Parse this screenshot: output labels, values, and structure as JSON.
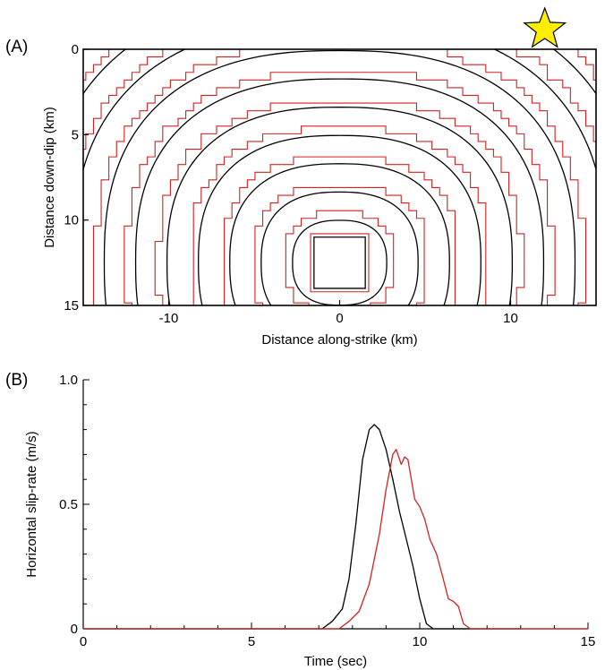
{
  "chart_data": [
    {
      "type": "contour",
      "panel_label": "(A)",
      "xlabel": "Distance along-strike (km)",
      "ylabel": "Distance down-dip (km)",
      "xlim": [
        -15,
        15
      ],
      "ylim": [
        15,
        0
      ],
      "y_inverted": true,
      "x_ticks": [
        -10,
        0,
        10
      ],
      "y_ticks": [
        0,
        5,
        10,
        15
      ],
      "hypocenter": {
        "x": 12,
        "y": 0,
        "marker": "star",
        "color": "#ffee00"
      },
      "series": [
        {
          "color": "#000000",
          "contours": [
            {
              "radius": 1.5,
              "shape": "square"
            },
            {
              "radius": 2.7
            },
            {
              "radius": 4.5
            },
            {
              "radius": 6.3
            },
            {
              "radius": 8.1
            },
            {
              "radius": 9.9
            },
            {
              "radius": 11.7
            },
            {
              "radius": 13.5
            },
            {
              "radius": 15.3
            },
            {
              "radius": 17.1
            },
            {
              "radius": 18.9
            }
          ]
        },
        {
          "color": "#d42020",
          "style": "stepped",
          "contours": [
            {
              "radius": 1.7,
              "shape": "square"
            },
            {
              "radius": 3.2
            },
            {
              "radius": 5.0
            },
            {
              "radius": 6.8
            },
            {
              "radius": 8.6
            },
            {
              "radius": 10.4
            },
            {
              "radius": 12.2
            },
            {
              "radius": 14.0
            },
            {
              "radius": 15.8
            },
            {
              "radius": 17.6
            },
            {
              "radius": 19.4
            }
          ]
        }
      ],
      "contour_center": {
        "x": 0,
        "y": 12.5
      }
    },
    {
      "type": "line",
      "panel_label": "(B)",
      "xlabel": "Time (sec)",
      "ylabel": "Horizontal slip-rate (m/s)",
      "xlim": [
        0,
        15
      ],
      "ylim": [
        0,
        1.0
      ],
      "x_ticks": [
        0,
        5,
        10,
        15
      ],
      "x_tick_labels": [
        "0",
        "5",
        "10",
        "15"
      ],
      "y_ticks": [
        0,
        0.5,
        1.0
      ],
      "y_tick_labels": [
        "0",
        "0.5",
        "1.0"
      ],
      "series": [
        {
          "color": "#000000",
          "x": [
            0,
            7.1,
            7.4,
            7.7,
            7.9,
            8.1,
            8.3,
            8.5,
            8.65,
            8.8,
            9.0,
            9.2,
            9.4,
            9.6,
            9.8,
            10.0,
            10.2,
            10.4,
            13.0
          ],
          "y": [
            0,
            0,
            0.03,
            0.08,
            0.2,
            0.42,
            0.68,
            0.8,
            0.82,
            0.8,
            0.72,
            0.6,
            0.47,
            0.36,
            0.25,
            0.12,
            0.02,
            0,
            0
          ]
        },
        {
          "color": "#d42020",
          "x": [
            0,
            7.6,
            7.9,
            8.2,
            8.5,
            8.8,
            9.0,
            9.2,
            9.3,
            9.45,
            9.55,
            9.65,
            9.75,
            9.85,
            10.0,
            10.15,
            10.3,
            10.5,
            10.7,
            10.85,
            11.0,
            11.15,
            11.3,
            11.5,
            15.0
          ],
          "y": [
            0,
            0,
            0.03,
            0.07,
            0.18,
            0.38,
            0.56,
            0.7,
            0.72,
            0.66,
            0.69,
            0.68,
            0.6,
            0.52,
            0.49,
            0.44,
            0.36,
            0.3,
            0.2,
            0.12,
            0.11,
            0.09,
            0.02,
            0,
            0
          ]
        }
      ]
    }
  ]
}
